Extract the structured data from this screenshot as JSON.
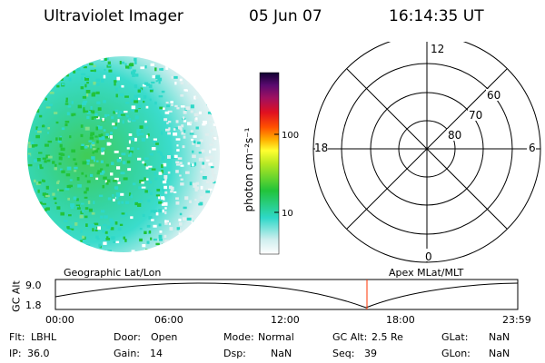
{
  "header": {
    "title": "Ultraviolet Imager",
    "date": "05 Jun 07",
    "time": "16:14:35 UT"
  },
  "colorbar": {
    "unit_label": "photon cm⁻²s⁻¹",
    "ticks": [
      {
        "value": 100,
        "label": "100"
      },
      {
        "value": 10,
        "label": "10"
      }
    ]
  },
  "polar_plot": {
    "mlt_labels": {
      "top": "12",
      "right": "6",
      "bottom": "0",
      "left": "18"
    },
    "lat_labels": [
      "60",
      "70",
      "80"
    ]
  },
  "timeline": {
    "left_title": "Geographic Lat/Lon",
    "right_title": "Apex MLat/MLT",
    "y_axis_label": "GC Alt",
    "y_ticks": [
      "9.0",
      "1.8"
    ],
    "x_ticks": [
      "00:00",
      "06:00",
      "12:00",
      "18:00",
      "23:59"
    ],
    "current_time_marker": "16:14:35"
  },
  "info": {
    "row1": [
      {
        "key": "Flt:",
        "value": "LBHL"
      },
      {
        "key": "Door:",
        "value": "Open"
      },
      {
        "key": "Mode:",
        "value": "Normal"
      },
      {
        "key": "GC Alt:",
        "value": "2.5 Re"
      },
      {
        "key": "GLat:",
        "value": "NaN"
      }
    ],
    "row2": [
      {
        "key": "IP:",
        "value": "36.0"
      },
      {
        "key": "Gain:",
        "value": "14"
      },
      {
        "key": "Dsp:",
        "value": "NaN"
      },
      {
        "key": "Seq:",
        "value": "39"
      },
      {
        "key": "GLon:",
        "value": "NaN"
      }
    ]
  },
  "colors": {
    "bright": "#22c33a",
    "mid": "#2ed8c8",
    "dim": "#dfeeee",
    "marker": "#ff3300"
  }
}
